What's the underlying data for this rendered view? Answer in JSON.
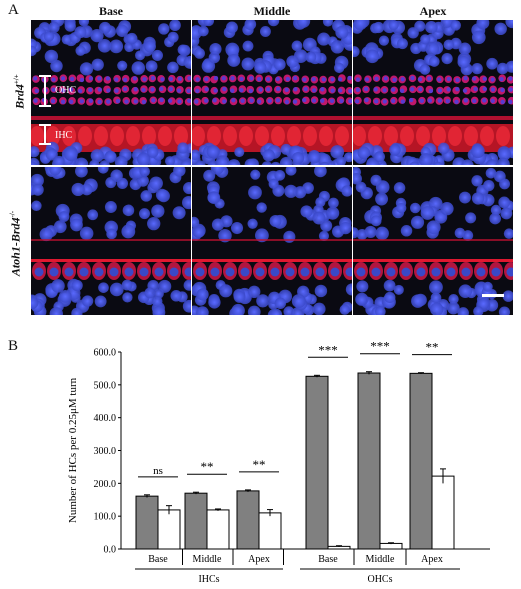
{
  "panel_a": {
    "letter": "A",
    "columns": [
      "Base",
      "Middle",
      "Apex"
    ],
    "rows": [
      {
        "label": "Brd4",
        "sup": "+/+"
      },
      {
        "label": "Atoh1-Brd4",
        "sup": "-/-"
      }
    ],
    "annotations": {
      "ohc": "OHC",
      "ihc": "IHC"
    },
    "colors": {
      "nuclei": "#3a48c8",
      "hair_cells": "#e0182a",
      "background": "#0a0a12"
    }
  },
  "panel_b": {
    "letter": "B"
  },
  "chart_data": {
    "type": "bar",
    "ylabel": "Number of HCs per 0.25μM turn",
    "ylim": [
      0,
      600
    ],
    "yticks": [
      "0.0",
      "100.0",
      "200.0",
      "300.0",
      "400.0",
      "500.0",
      "600.0"
    ],
    "groups": [
      {
        "name": "IHCs",
        "categories": [
          "Base",
          "Middle",
          "Apex"
        ]
      },
      {
        "name": "OHCs",
        "categories": [
          "Base",
          "Middle",
          "Apex"
        ]
      }
    ],
    "series": [
      {
        "color": "#808080",
        "values": [
          161,
          170,
          177,
          526,
          536,
          535
        ],
        "errors": [
          4,
          3,
          3,
          3,
          4,
          2
        ]
      },
      {
        "color": "#ffffff",
        "values": [
          119,
          119,
          110,
          8,
          17,
          222
        ],
        "errors": [
          13,
          3,
          10,
          2,
          2,
          22
        ]
      }
    ],
    "significance": [
      "ns",
      "**",
      "**",
      "***",
      "***",
      "**"
    ]
  }
}
